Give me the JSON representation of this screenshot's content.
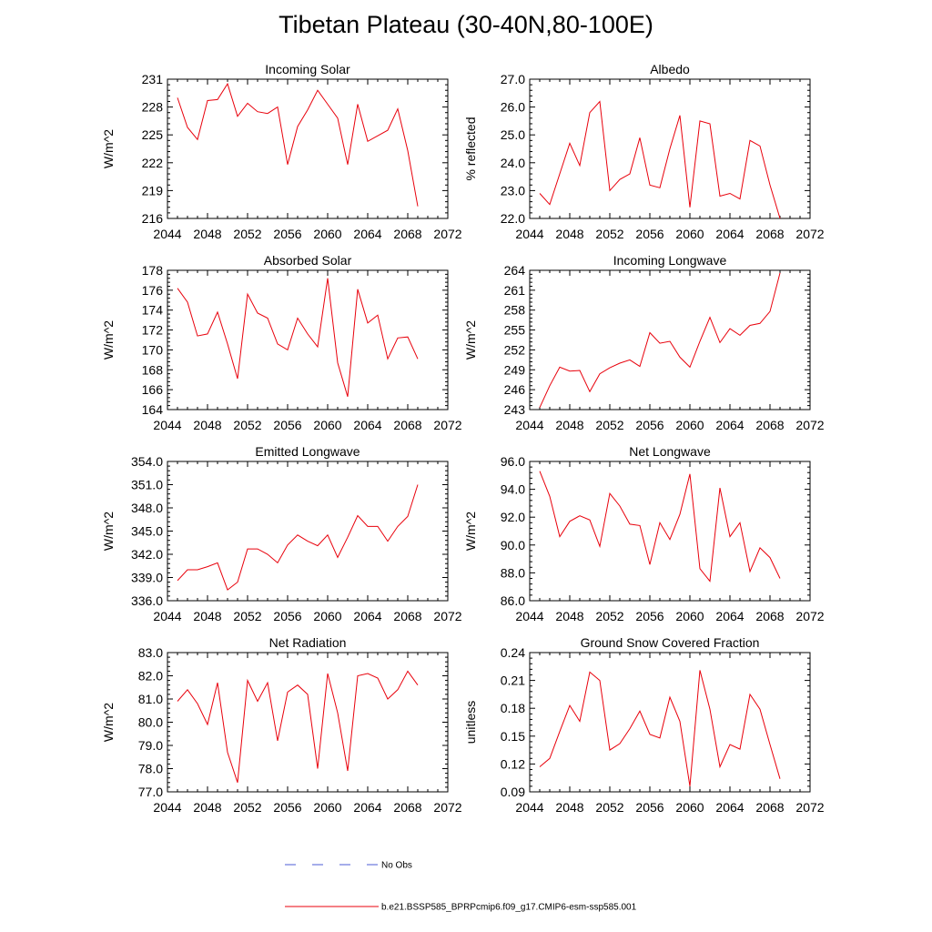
{
  "page": {
    "title": "Tibetan Plateau (30-40N,80-100E)"
  },
  "legend": {
    "obs_label": "No Obs",
    "model_label": "b.e21.BSSP585_BPRPcmip6.f09_g17.CMIP6-esm-ssp585.001",
    "obs_color": "#4b5bd6",
    "model_color": "#e8000b"
  },
  "chart_data": [
    {
      "type": "line",
      "title": "Incoming Solar",
      "ylabel": "W/m^2",
      "xlim": [
        2044,
        2072
      ],
      "ylim": [
        216,
        231
      ],
      "xticks": [
        "2044",
        "2048",
        "2052",
        "2056",
        "2060",
        "2064",
        "2068",
        "2072"
      ],
      "yticks": [
        "216",
        "219",
        "222",
        "225",
        "228",
        "231"
      ],
      "series": [
        {
          "x": [
            2045,
            2046,
            2047,
            2048,
            2049,
            2050,
            2051,
            2052,
            2053,
            2054,
            2055,
            2056,
            2057,
            2058,
            2059,
            2060,
            2061,
            2062,
            2063,
            2064,
            2065,
            2066,
            2067,
            2068,
            2069
          ],
          "y": [
            229.0,
            225.8,
            224.5,
            228.7,
            228.8,
            230.5,
            227.0,
            228.4,
            227.5,
            227.3,
            228.0,
            221.8,
            225.9,
            227.7,
            229.8,
            228.3,
            226.8,
            221.8,
            228.3,
            224.3,
            224.9,
            225.5,
            227.8,
            223.3,
            217.3
          ]
        }
      ]
    },
    {
      "type": "line",
      "title": "Albedo",
      "ylabel": "% reflected",
      "xlim": [
        2044,
        2072
      ],
      "ylim": [
        22.0,
        27.0
      ],
      "xticks": [
        "2044",
        "2048",
        "2052",
        "2056",
        "2060",
        "2064",
        "2068",
        "2072"
      ],
      "yticks": [
        "22.0",
        "23.0",
        "24.0",
        "25.0",
        "26.0",
        "27.0"
      ],
      "series": [
        {
          "x": [
            2045,
            2046,
            2047,
            2048,
            2049,
            2050,
            2051,
            2052,
            2053,
            2054,
            2055,
            2056,
            2057,
            2058,
            2059,
            2060,
            2061,
            2062,
            2063,
            2064,
            2065,
            2066,
            2067,
            2068,
            2069
          ],
          "y": [
            22.9,
            22.5,
            23.6,
            24.7,
            23.9,
            25.8,
            26.2,
            23.0,
            23.4,
            23.6,
            24.9,
            23.2,
            23.1,
            24.5,
            25.7,
            22.4,
            25.5,
            25.4,
            22.8,
            22.9,
            22.7,
            24.8,
            24.6,
            23.2,
            22.0
          ]
        }
      ]
    },
    {
      "type": "line",
      "title": "Absorbed Solar",
      "ylabel": "W/m^2",
      "xlim": [
        2044,
        2072
      ],
      "ylim": [
        164,
        178
      ],
      "xticks": [
        "2044",
        "2048",
        "2052",
        "2056",
        "2060",
        "2064",
        "2068",
        "2072"
      ],
      "yticks": [
        "164",
        "166",
        "168",
        "170",
        "172",
        "174",
        "176",
        "178"
      ],
      "series": [
        {
          "x": [
            2045,
            2046,
            2047,
            2048,
            2049,
            2050,
            2051,
            2052,
            2053,
            2054,
            2055,
            2056,
            2057,
            2058,
            2059,
            2060,
            2061,
            2062,
            2063,
            2064,
            2065,
            2066,
            2067,
            2068,
            2069
          ],
          "y": [
            176.2,
            174.8,
            171.4,
            171.6,
            173.8,
            170.6,
            167.1,
            175.6,
            173.7,
            173.2,
            170.6,
            170.0,
            173.2,
            171.6,
            170.3,
            177.2,
            168.7,
            165.3,
            176.1,
            172.7,
            173.5,
            169.1,
            171.2,
            171.3,
            169.1
          ]
        }
      ]
    },
    {
      "type": "line",
      "title": "Incoming Longwave",
      "ylabel": "W/m^2",
      "xlim": [
        2044,
        2072
      ],
      "ylim": [
        243,
        264
      ],
      "xticks": [
        "2044",
        "2048",
        "2052",
        "2056",
        "2060",
        "2064",
        "2068",
        "2072"
      ],
      "yticks": [
        "243",
        "246",
        "249",
        "252",
        "255",
        "258",
        "261",
        "264"
      ],
      "series": [
        {
          "x": [
            2045,
            2046,
            2047,
            2048,
            2049,
            2050,
            2051,
            2052,
            2053,
            2054,
            2055,
            2056,
            2057,
            2058,
            2059,
            2060,
            2061,
            2062,
            2063,
            2064,
            2065,
            2066,
            2067,
            2068,
            2069
          ],
          "y": [
            243.3,
            246.6,
            249.4,
            248.8,
            248.9,
            245.7,
            248.4,
            249.3,
            250.0,
            250.5,
            249.5,
            254.6,
            253.0,
            253.3,
            250.9,
            249.4,
            253.3,
            256.9,
            253.1,
            255.2,
            254.2,
            255.7,
            256.0,
            257.8,
            263.6
          ]
        }
      ]
    },
    {
      "type": "line",
      "title": "Emitted Longwave",
      "ylabel": "W/m^2",
      "xlim": [
        2044,
        2072
      ],
      "ylim": [
        336.0,
        354.0
      ],
      "xticks": [
        "2044",
        "2048",
        "2052",
        "2056",
        "2060",
        "2064",
        "2068",
        "2072"
      ],
      "yticks": [
        "336.0",
        "339.0",
        "342.0",
        "345.0",
        "348.0",
        "351.0",
        "354.0"
      ],
      "series": [
        {
          "x": [
            2045,
            2046,
            2047,
            2048,
            2049,
            2050,
            2051,
            2052,
            2053,
            2054,
            2055,
            2056,
            2057,
            2058,
            2059,
            2060,
            2061,
            2062,
            2063,
            2064,
            2065,
            2066,
            2067,
            2068,
            2069
          ],
          "y": [
            338.6,
            340.0,
            340.0,
            340.4,
            340.9,
            337.4,
            338.4,
            342.7,
            342.7,
            342.0,
            340.9,
            343.2,
            344.5,
            343.7,
            343.1,
            344.5,
            341.6,
            344.2,
            347.0,
            345.6,
            345.6,
            343.7,
            345.6,
            346.9,
            351.0
          ]
        }
      ]
    },
    {
      "type": "line",
      "title": "Net Longwave",
      "ylabel": "W/m^2",
      "xlim": [
        2044,
        2072
      ],
      "ylim": [
        86.0,
        96.0
      ],
      "xticks": [
        "2044",
        "2048",
        "2052",
        "2056",
        "2060",
        "2064",
        "2068",
        "2072"
      ],
      "yticks": [
        "86.0",
        "88.0",
        "90.0",
        "92.0",
        "94.0",
        "96.0"
      ],
      "series": [
        {
          "x": [
            2045,
            2046,
            2047,
            2048,
            2049,
            2050,
            2051,
            2052,
            2053,
            2054,
            2055,
            2056,
            2057,
            2058,
            2059,
            2060,
            2061,
            2062,
            2063,
            2064,
            2065,
            2066,
            2067,
            2068,
            2069
          ],
          "y": [
            95.3,
            93.5,
            90.6,
            91.7,
            92.1,
            91.8,
            89.9,
            93.7,
            92.8,
            91.5,
            91.4,
            88.6,
            91.6,
            90.4,
            92.2,
            95.1,
            88.3,
            87.4,
            94.1,
            90.6,
            91.6,
            88.1,
            89.8,
            89.1,
            87.6
          ]
        }
      ]
    },
    {
      "type": "line",
      "title": "Net Radiation",
      "ylabel": "W/m^2",
      "xlim": [
        2044,
        2072
      ],
      "ylim": [
        77.0,
        83.0
      ],
      "xticks": [
        "2044",
        "2048",
        "2052",
        "2056",
        "2060",
        "2064",
        "2068",
        "2072"
      ],
      "yticks": [
        "77.0",
        "78.0",
        "79.0",
        "80.0",
        "81.0",
        "82.0",
        "83.0"
      ],
      "series": [
        {
          "x": [
            2045,
            2046,
            2047,
            2048,
            2049,
            2050,
            2051,
            2052,
            2053,
            2054,
            2055,
            2056,
            2057,
            2058,
            2059,
            2060,
            2061,
            2062,
            2063,
            2064,
            2065,
            2066,
            2067,
            2068,
            2069
          ],
          "y": [
            80.9,
            81.4,
            80.8,
            79.9,
            81.7,
            78.7,
            77.4,
            81.8,
            80.9,
            81.7,
            79.2,
            81.3,
            81.6,
            81.2,
            78.0,
            82.1,
            80.4,
            77.9,
            82.0,
            82.1,
            81.9,
            81.0,
            81.4,
            82.2,
            81.6
          ]
        }
      ]
    },
    {
      "type": "line",
      "title": "Ground Snow Covered Fraction",
      "ylabel": "unitless",
      "xlim": [
        2044,
        2072
      ],
      "ylim": [
        0.09,
        0.24
      ],
      "xticks": [
        "2044",
        "2048",
        "2052",
        "2056",
        "2060",
        "2064",
        "2068",
        "2072"
      ],
      "yticks": [
        "0.09",
        "0.12",
        "0.15",
        "0.18",
        "0.21",
        "0.24"
      ],
      "series": [
        {
          "x": [
            2045,
            2046,
            2047,
            2048,
            2049,
            2050,
            2051,
            2052,
            2053,
            2054,
            2055,
            2056,
            2057,
            2058,
            2059,
            2060,
            2061,
            2062,
            2063,
            2064,
            2065,
            2066,
            2067,
            2068,
            2069
          ],
          "y": [
            0.117,
            0.126,
            0.155,
            0.183,
            0.166,
            0.219,
            0.21,
            0.135,
            0.142,
            0.158,
            0.177,
            0.152,
            0.148,
            0.192,
            0.166,
            0.096,
            0.221,
            0.179,
            0.117,
            0.141,
            0.136,
            0.195,
            0.179,
            0.141,
            0.104
          ]
        }
      ]
    }
  ]
}
